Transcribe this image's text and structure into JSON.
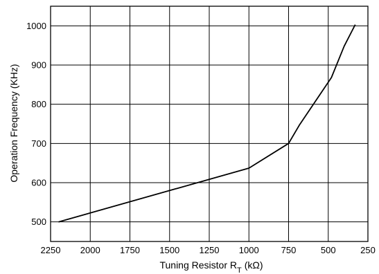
{
  "chart_data": {
    "type": "line",
    "title": "",
    "xlabel": "Tuning Resistor R",
    "xlabel_subscript": "T",
    "xlabel_unit": "(kΩ)",
    "ylabel": "Operation Frequency (KHz)",
    "x_reversed": true,
    "xlim": [
      250,
      2250
    ],
    "ylim": [
      450,
      1050
    ],
    "grid": true,
    "x_ticks": [
      2250,
      2000,
      1750,
      1500,
      1250,
      1000,
      750,
      500,
      250
    ],
    "x_tick_labels": [
      "2250",
      "2000",
      "1750",
      "1500",
      "1250",
      "1000",
      "750",
      "500",
      "250"
    ],
    "y_ticks": [
      500,
      600,
      700,
      800,
      900,
      1000
    ],
    "y_tick_labels": [
      "500",
      "600",
      "700",
      "800",
      "900",
      "1000"
    ],
    "series": [
      {
        "x": [
          2200,
          1000,
          750,
          680,
          580,
          480,
          400,
          330
        ],
        "y": [
          500,
          637,
          700,
          748,
          808,
          868,
          948,
          1003
        ]
      }
    ]
  }
}
